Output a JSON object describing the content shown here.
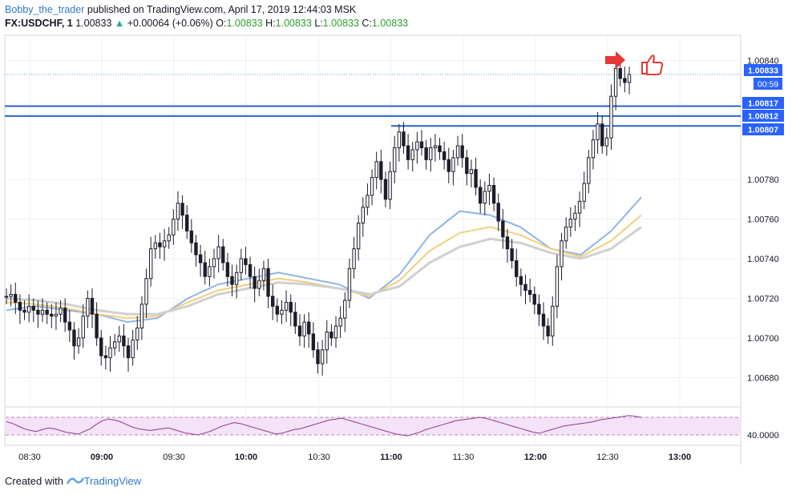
{
  "header": {
    "author": "Bobby_the_trader",
    "published_text": " published on TradingView.com, April 17, 2019 12:44:03 MSK"
  },
  "ohlc": {
    "symbol": "FX:USDCHF, 1",
    "last": "1.00833",
    "change": "+0.00064 (+0.06%)",
    "open_label": "O:",
    "open": "1.00833",
    "high_label": "H:",
    "high": "1.00833",
    "low_label": "L:",
    "low": "1.00833",
    "close_label": "C:",
    "close": "1.00833"
  },
  "footer": {
    "created_with": "Created with",
    "brand": "TradingView"
  },
  "colors": {
    "candle_up": "#ffffff",
    "candle_down": "#1c1c2b",
    "wick": "#1c1c2b",
    "level_line": "#2962c8",
    "label_bg": "#2962ff",
    "ma_blue": "#8fb4e6",
    "ma_yellow": "#f2cf7a",
    "ma_gray": "#d0d0d0",
    "rsi_line": "#8e3b8e",
    "rsi_band": "#f3e2f8",
    "arrow_red": "#e53935"
  },
  "chart_data": {
    "type": "candlestick",
    "symbol": "FX:USDCHF",
    "interval": "1",
    "time_ticks": [
      "08:30",
      "09:00",
      "09:30",
      "10:00",
      "10:30",
      "11:00",
      "11:30",
      "12:00",
      "12:30",
      "13:00"
    ],
    "bold_time_ticks": [
      "09:00",
      "10:00",
      "11:00",
      "12:00",
      "13:00"
    ],
    "y_ticks": [
      "1.00840",
      "1.00780",
      "1.00760",
      "1.00740",
      "1.00720",
      "1.00700",
      "1.00680"
    ],
    "ylim": [
      1.00666,
      1.00852
    ],
    "price_labels": {
      "current": "1.00833",
      "countdown": "00:59",
      "level_1": "1.00817",
      "level_2": "1.00812",
      "level_3": "1.00807"
    },
    "horizontal_levels": [
      1.00817,
      1.00812,
      1.00807
    ],
    "close_series": [
      1.00721,
      1.00722,
      1.00718,
      1.00714,
      1.00713,
      1.00716,
      1.00714,
      1.00712,
      1.00714,
      1.00712,
      1.00711,
      1.00712,
      1.00715,
      1.00708,
      1.00704,
      1.00696,
      1.007,
      1.00711,
      1.0072,
      1.00712,
      1.007,
      1.00691,
      1.0069,
      1.00695,
      1.00698,
      1.00701,
      1.00696,
      1.0069,
      1.00699,
      1.00705,
      1.00717,
      1.0073,
      1.00745,
      1.00748,
      1.00746,
      1.00749,
      1.00752,
      1.0076,
      1.00768,
      1.00762,
      1.00754,
      1.00748,
      1.00742,
      1.00738,
      1.00731,
      1.00736,
      1.0074,
      1.00746,
      1.00738,
      1.00731,
      1.00727,
      1.00733,
      1.0074,
      1.00737,
      1.00731,
      1.00725,
      1.00729,
      1.00735,
      1.00721,
      1.00716,
      1.00712,
      1.00714,
      1.00718,
      1.00713,
      1.00706,
      1.00701,
      1.00708,
      1.00702,
      1.00694,
      1.00687,
      1.00694,
      1.00703,
      1.007,
      1.00706,
      1.0071,
      1.00719,
      1.00735,
      1.00745,
      1.00758,
      1.00766,
      1.00772,
      1.00781,
      1.00789,
      1.0078,
      1.0077,
      1.00784,
      1.00796,
      1.00804,
      1.00797,
      1.0079,
      1.00795,
      1.00799,
      1.00796,
      1.0079,
      1.00796,
      1.00797,
      1.00794,
      1.0079,
      1.00784,
      1.00791,
      1.00797,
      1.00791,
      1.00783,
      1.00785,
      1.00776,
      1.00768,
      1.00774,
      1.00777,
      1.00768,
      1.00759,
      1.00751,
      1.00745,
      1.00739,
      1.00731,
      1.00727,
      1.00724,
      1.00722,
      1.00717,
      1.00712,
      1.00706,
      1.00701,
      1.00716,
      1.00736,
      1.00749,
      1.00756,
      1.0076,
      1.00763,
      1.00769,
      1.00778,
      1.00791,
      1.008,
      1.00808,
      1.00797,
      1.00801,
      1.00822,
      1.00836,
      1.00831,
      1.00829,
      1.00833
    ],
    "moving_averages": [
      {
        "color": "#8fb4e6",
        "values": [
          1.00714,
          1.00716,
          1.00714,
          1.00712,
          1.00708,
          1.0071,
          1.0072,
          1.00727,
          1.0073,
          1.00733,
          1.0073,
          1.00727,
          1.0072,
          1.00732,
          1.00752,
          1.00764,
          1.00762,
          1.00756,
          1.00745,
          1.00742,
          1.00754,
          1.00771
        ]
      },
      {
        "color": "#f2cf7a",
        "values": [
          1.00718,
          1.00717,
          1.00715,
          1.00712,
          1.0071,
          1.00711,
          1.00718,
          1.00724,
          1.00727,
          1.0073,
          1.00728,
          1.00725,
          1.00721,
          1.00729,
          1.00744,
          1.00753,
          1.00756,
          1.00752,
          1.00745,
          1.00741,
          1.00749,
          1.00762
        ]
      },
      {
        "color": "#d0d0d0",
        "values": [
          1.0072,
          1.00719,
          1.00717,
          1.00714,
          1.00712,
          1.00712,
          1.00716,
          1.00722,
          1.00725,
          1.00728,
          1.00727,
          1.00725,
          1.00722,
          1.00726,
          1.00738,
          1.00746,
          1.0075,
          1.00748,
          1.00743,
          1.0074,
          1.00745,
          1.00756
        ]
      }
    ],
    "rsi": {
      "label": "40.0000",
      "values": [
        55,
        53,
        50,
        47,
        45,
        44,
        46,
        48,
        47,
        45,
        43,
        42,
        41,
        44,
        47,
        52,
        56,
        58,
        57,
        55,
        52,
        49,
        47,
        46,
        45,
        46,
        47,
        48,
        46,
        44,
        42,
        41,
        40,
        42,
        44,
        47,
        50,
        52,
        54,
        53,
        51,
        49,
        47,
        45,
        43,
        41,
        42,
        44,
        46,
        47,
        49,
        51,
        53,
        55,
        57,
        58,
        59,
        57,
        55,
        53,
        51,
        49,
        47,
        45,
        43,
        41,
        40,
        39,
        41,
        43,
        46,
        48,
        50,
        52,
        54,
        56,
        57,
        58,
        59,
        60,
        59,
        57,
        55,
        53,
        51,
        49,
        47,
        45,
        43,
        42,
        44,
        46,
        48,
        50,
        51,
        52,
        53,
        54,
        55,
        57,
        58,
        59,
        60,
        61,
        62,
        61,
        60
      ]
    }
  }
}
